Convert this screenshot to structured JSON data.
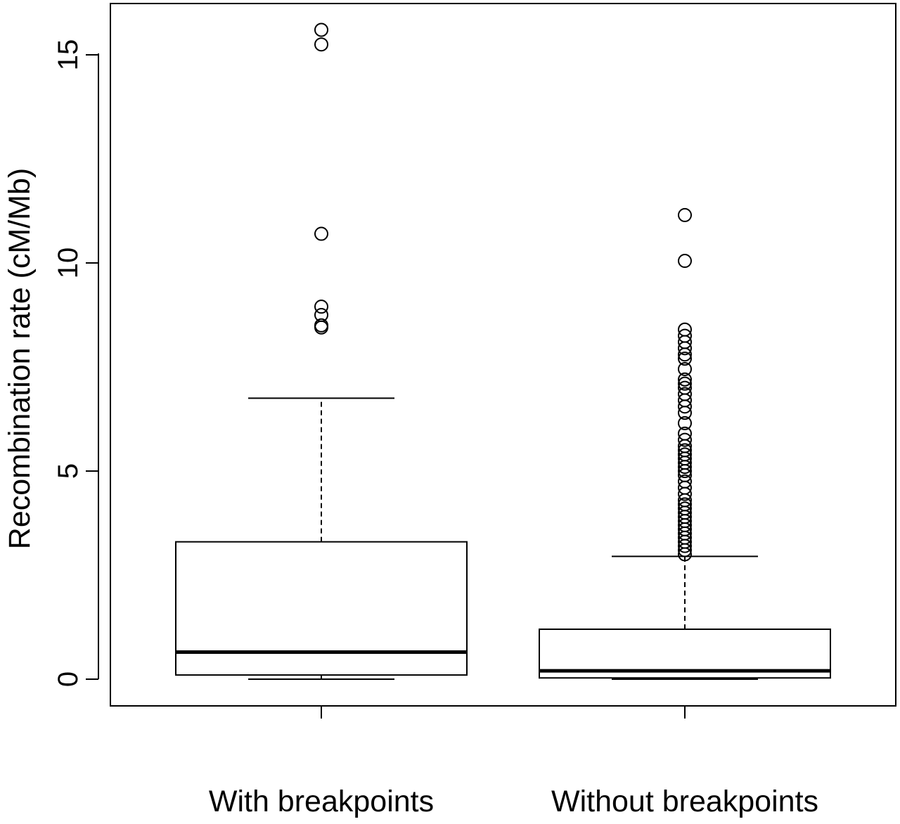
{
  "chart_data": {
    "type": "boxplot",
    "title": "",
    "xlabel": "",
    "ylabel": "Recombination rate (cM/Mb)",
    "ylim": [
      -0.65,
      16.2
    ],
    "yticks": [
      0,
      5,
      10,
      15
    ],
    "ytick_labels": [
      "0",
      "5",
      "10",
      "15"
    ],
    "categories": [
      "With breakpoints",
      "Without breakpoints"
    ],
    "grid": false,
    "legend": "none",
    "boxes": [
      {
        "category": "With breakpoints",
        "whisker_low": 0.0,
        "q1": 0.1,
        "median": 0.65,
        "q3": 3.3,
        "whisker_high": 6.75,
        "outliers": [
          15.6,
          15.25,
          10.7,
          8.95,
          8.75,
          8.5,
          8.45
        ]
      },
      {
        "category": "Without breakpoints",
        "whisker_low": 0.0,
        "q1": 0.03,
        "median": 0.2,
        "q3": 1.2,
        "whisker_high": 2.95,
        "outliers": [
          11.15,
          10.05,
          8.4,
          8.25,
          8.1,
          7.95,
          7.8,
          7.7,
          7.45,
          7.2,
          7.1,
          7.0,
          6.85,
          6.7,
          6.55,
          6.4,
          6.15,
          5.9,
          5.75,
          5.6,
          5.5,
          5.4,
          5.3,
          5.2,
          5.1,
          5.0,
          4.9,
          4.75,
          4.6,
          4.45,
          4.3,
          4.2,
          4.1,
          4.0,
          3.9,
          3.8,
          3.7,
          3.6,
          3.5,
          3.4,
          3.3,
          3.2,
          3.1,
          3.0
        ]
      }
    ]
  }
}
